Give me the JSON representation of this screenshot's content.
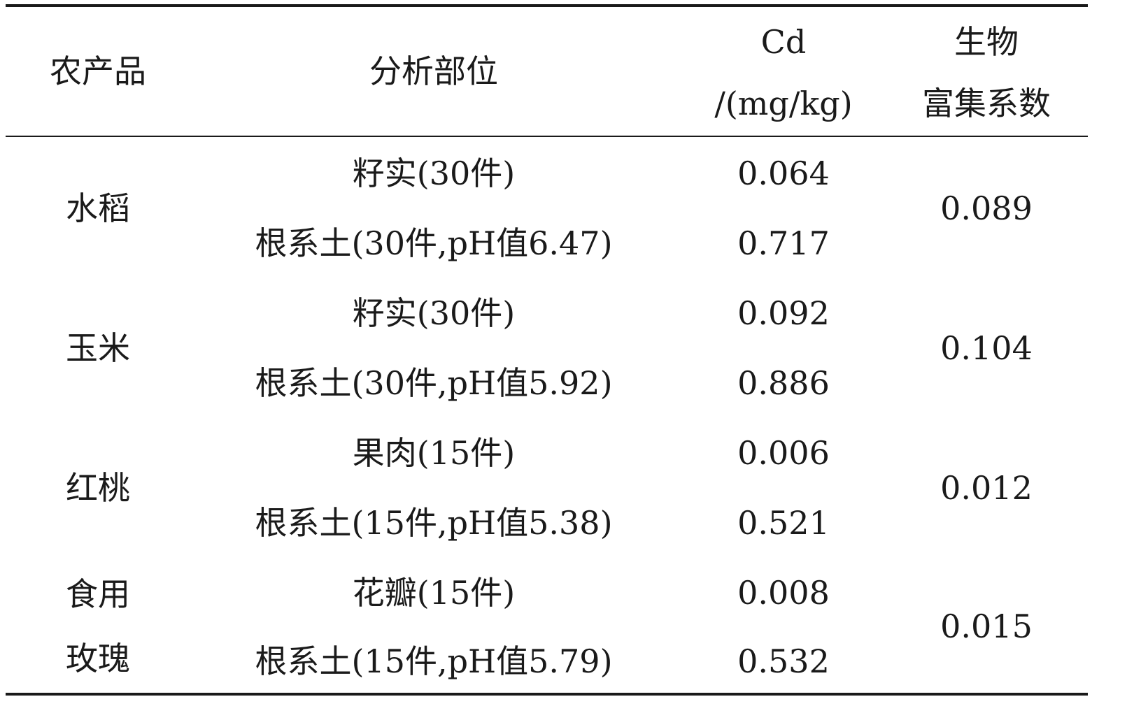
{
  "table": {
    "headers": {
      "product": "农产品",
      "part": "分析部位",
      "cd_line1": "Cd",
      "cd_line2": "/(mg/kg)",
      "bio_line1": "生物",
      "bio_line2": "富集系数"
    },
    "rows": [
      {
        "product": [
          "水稻"
        ],
        "parts": [
          {
            "label": "籽实(30件)",
            "cd": "0.064"
          },
          {
            "label": "根系土(30件,pH值6.47)",
            "cd": "0.717"
          }
        ],
        "bio": "0.089"
      },
      {
        "product": [
          "玉米"
        ],
        "parts": [
          {
            "label": "籽实(30件)",
            "cd": "0.092"
          },
          {
            "label": "根系土(30件,pH值5.92)",
            "cd": "0.886"
          }
        ],
        "bio": "0.104"
      },
      {
        "product": [
          "红桃"
        ],
        "parts": [
          {
            "label": "果肉(15件)",
            "cd": "0.006"
          },
          {
            "label": "根系土(15件,pH值5.38)",
            "cd": "0.521"
          }
        ],
        "bio": "0.012"
      },
      {
        "product": [
          "食用",
          "玫瑰"
        ],
        "parts": [
          {
            "label": "花瓣(15件)",
            "cd": "0.008"
          },
          {
            "label": "根系土(15件,pH值5.79)",
            "cd": "0.532"
          }
        ],
        "bio": "0.015"
      }
    ]
  }
}
